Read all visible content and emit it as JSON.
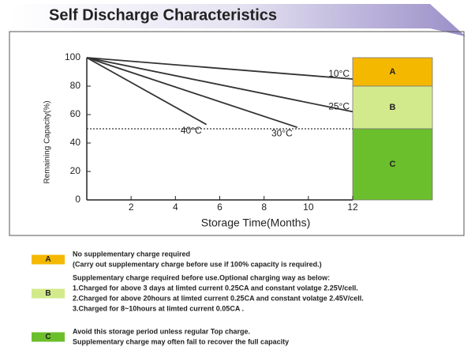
{
  "chart_data": {
    "type": "line",
    "title": "Self Discharge Characteristics",
    "x_label": "Storage Time(Months)",
    "y_label": "Remaining Capacity(%)",
    "xlim": [
      0,
      12
    ],
    "xticks": [
      2,
      4,
      6,
      8,
      10,
      12
    ],
    "ylim": [
      0,
      100
    ],
    "yticks": [
      0,
      20,
      40,
      60,
      80,
      100
    ],
    "reference_line": 50,
    "series": [
      {
        "name": "10°C",
        "color": "#333333",
        "x": [
          0,
          12
        ],
        "values": [
          100,
          85
        ]
      },
      {
        "name": "25°C",
        "color": "#333333",
        "x": [
          0,
          12
        ],
        "values": [
          100,
          62
        ]
      },
      {
        "name": "40°C",
        "color": "#333333",
        "x": [
          0,
          5.4
        ],
        "values": [
          100,
          53
        ]
      },
      {
        "name": "30°C",
        "color": "#333333",
        "x": [
          0,
          9.5
        ],
        "values": [
          100,
          51
        ]
      }
    ],
    "zones": [
      {
        "label": "A",
        "from": 80,
        "to": 100,
        "color": "#f5b800"
      },
      {
        "label": "B",
        "from": 50,
        "to": 80,
        "color": "#d3ea8c"
      },
      {
        "label": "C",
        "from": 0,
        "to": 50,
        "color": "#6cbf2c"
      }
    ],
    "notes": [
      {
        "lines": [
          "No supplementary charge required",
          "(Carry out supplementary charge before use if 100% capacity is required.)"
        ]
      },
      {
        "lines": [
          "Supplementary charge required before use.Optional charging way as below:",
          "1.Charged for above 3 days at limted current 0.25CA and constant volatge 2.25V/cell.",
          "2.Charged for above 20hours at limted current 0.25CA and constant volatge 2.45V/cell.",
          "3.Charged for 8~10hours at limted current 0.05CA ."
        ]
      },
      {
        "lines": [
          "Avoid this storage period unless regular Top charge.",
          "Supplementary charge may often fail to recover the full capacity"
        ]
      }
    ]
  }
}
